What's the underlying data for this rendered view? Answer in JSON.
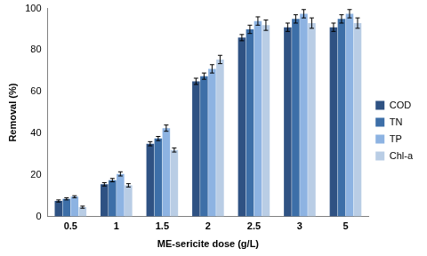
{
  "chart_data": {
    "type": "bar",
    "x_label": "ME-sericite dose (g/L)",
    "y_label": "Removal (%)",
    "categories": [
      "0.5",
      "1",
      "1.5",
      "2",
      "2.5",
      "3",
      "5"
    ],
    "series": [
      {
        "name": "COD",
        "color": "#2f5283",
        "values": [
          7.5,
          15.5,
          35,
          65,
          86,
          91,
          91
        ],
        "errors": [
          0.5,
          0.8,
          1,
          1.5,
          1.5,
          2,
          2
        ]
      },
      {
        "name": "TN",
        "color": "#3d6fa8",
        "values": [
          8.5,
          17.5,
          37.5,
          67.5,
          90,
          95,
          95
        ],
        "errors": [
          0.5,
          0.8,
          1,
          1.5,
          2,
          2,
          2
        ]
      },
      {
        "name": "TP",
        "color": "#8db3e2",
        "values": [
          9.5,
          20.5,
          42.5,
          71,
          94,
          97.5,
          97.5
        ],
        "errors": [
          0.5,
          1,
          1.5,
          2,
          2,
          2,
          2
        ]
      },
      {
        "name": "Chl-a",
        "color": "#b9cde5",
        "values": [
          4.5,
          15,
          32,
          75.5,
          92,
          93,
          93
        ],
        "errors": [
          0.5,
          0.8,
          1,
          2,
          2.5,
          2.5,
          2.5
        ]
      }
    ],
    "ylim": [
      0,
      100
    ],
    "yticks": [
      0,
      20,
      40,
      60,
      80,
      100
    ],
    "grid": false,
    "legend": "right"
  }
}
